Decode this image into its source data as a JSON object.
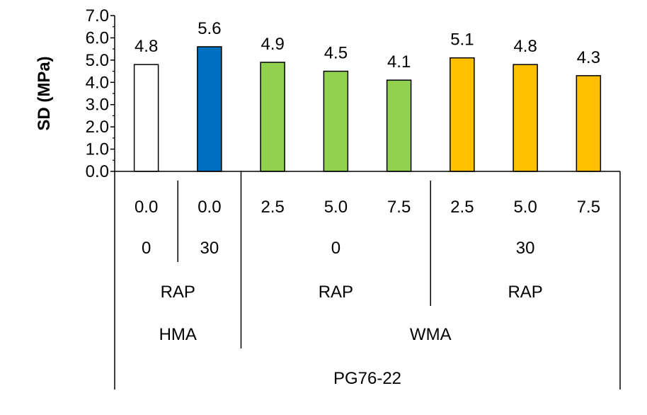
{
  "chart_data": {
    "type": "bar",
    "title": "",
    "xlabel": "",
    "ylabel": "SD (MPa)",
    "ylim": [
      0,
      7
    ],
    "yticks": [
      "0.0",
      "1.0",
      "2.0",
      "3.0",
      "4.0",
      "5.0",
      "6.0",
      "7.0"
    ],
    "grid": false,
    "values": [
      4.8,
      5.6,
      4.9,
      4.5,
      4.1,
      5.1,
      4.8,
      4.3
    ],
    "value_labels": [
      "4.8",
      "5.6",
      "4.9",
      "4.5",
      "4.1",
      "5.1",
      "4.8",
      "4.3"
    ],
    "colors": [
      "#ffffff",
      "#0070c0",
      "#92d050",
      "#92d050",
      "#92d050",
      "#ffc000",
      "#ffc000",
      "#ffc000"
    ],
    "categories_level1": [
      "0.0",
      "0.0",
      "2.5",
      "5.0",
      "7.5",
      "2.5",
      "5.0",
      "7.5"
    ],
    "categories_level2": [
      {
        "label": "0",
        "span": [
          0,
          0
        ]
      },
      {
        "label": "30",
        "span": [
          1,
          1
        ]
      },
      {
        "label": "0",
        "span": [
          2,
          4
        ]
      },
      {
        "label": "30",
        "span": [
          5,
          7
        ]
      }
    ],
    "categories_level3": [
      {
        "label": "RAP",
        "span": [
          0,
          1
        ]
      },
      {
        "label": "RAP",
        "span": [
          2,
          4
        ]
      },
      {
        "label": "RAP",
        "span": [
          5,
          7
        ]
      }
    ],
    "categories_level4": [
      {
        "label": "HMA",
        "span": [
          0,
          1
        ]
      },
      {
        "label": "WMA",
        "span": [
          2,
          7
        ]
      }
    ],
    "categories_level5": [
      {
        "label": "PG76-22",
        "span": [
          0,
          7
        ]
      }
    ]
  }
}
